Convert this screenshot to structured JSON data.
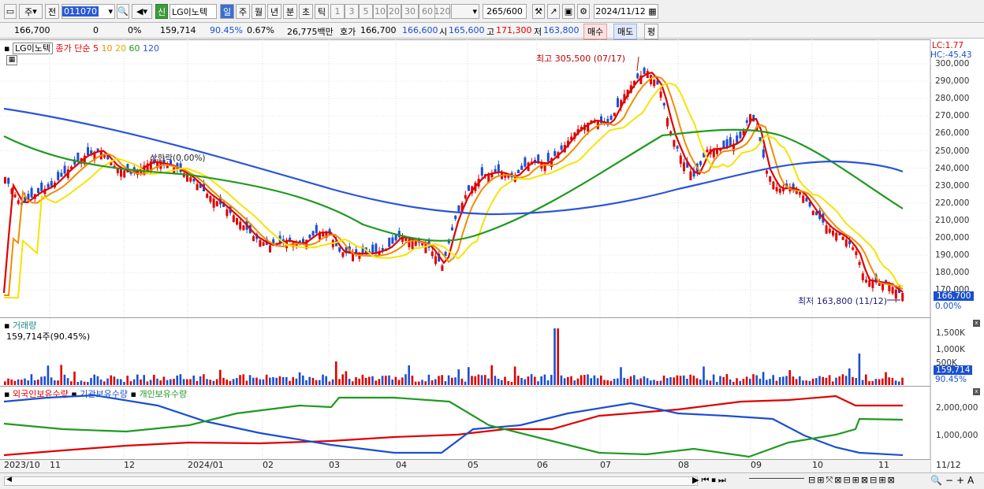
{
  "toolbar": {
    "market": "주",
    "prev": "전",
    "code": "011070",
    "name_badge": "신",
    "name": "LG이노텍",
    "periods": [
      "일",
      "주",
      "월",
      "년",
      "분",
      "초",
      "틱"
    ],
    "nums": [
      "1",
      "3",
      "5",
      "10",
      "20",
      "30",
      "60",
      "120"
    ],
    "count": "265",
    "count_total": "/600",
    "date": "2024/11/12"
  },
  "info": {
    "price": "166,700",
    "change": "0",
    "change_pct": "0%",
    "volume": "159,714",
    "vol_ratio": "90.45%",
    "turnover": "0.67%",
    "amount": "26,775백만",
    "hoga_label": "호가",
    "hoga1": "166,700",
    "hoga2": "166,600",
    "open_label": "시",
    "open": "165,600",
    "high_label": "고",
    "high": "171,300",
    "low_label": "저",
    "low": "163,800",
    "buy": "매수",
    "sell": "매도",
    "eval": "평"
  },
  "price_panel": {
    "title": "LG이노텍",
    "legend": "종가 단순",
    "ma": [
      "5",
      "10",
      "20",
      "60",
      "120"
    ],
    "lc": "LC:1.77",
    "hc": "HC:-45.43",
    "high_note": "최고 305,500 (07/17)",
    "low_note": "최저 163,800 (11/12)",
    "event": "상한락(0.00%)",
    "current": "166,700",
    "pct": "0.00%",
    "axis": [
      "300,000",
      "290,000",
      "280,000",
      "270,000",
      "260,000",
      "250,000",
      "240,000",
      "230,000",
      "220,000",
      "210,000",
      "200,000",
      "190,000",
      "180,000",
      "170,000"
    ]
  },
  "volume_panel": {
    "title": "거래량",
    "value": "159,714주(90.45%)",
    "axis": [
      "1,500K",
      "1,000K",
      "500K"
    ],
    "current": "159,714",
    "pct": "90.45%"
  },
  "holding_panel": {
    "labels": [
      "외국인보유수량",
      "기관보유수량",
      "개인보유수량"
    ],
    "axis": [
      "2,000,000",
      "1,000,000"
    ]
  },
  "x_labels": [
    "2023/10",
    "11",
    "12",
    "2024/01",
    "02",
    "03",
    "04",
    "05",
    "06",
    "07",
    "08",
    "09",
    "10",
    "11",
    "11/12"
  ],
  "colors": {
    "ma5": "#e00000",
    "ma10": "#f08c00",
    "ma20": "#f5e400",
    "ma60": "#1f9a1f",
    "ma120": "#2c54d8",
    "up": "#e00000",
    "down": "#1a4fd0"
  },
  "chart_data": {
    "type": "candlestick",
    "title": "LG이노텍",
    "y_range": [
      163800,
      305500
    ],
    "high": {
      "value": 305500,
      "date": "07/17"
    },
    "low": {
      "value": 163800,
      "date": "11/12"
    },
    "moving_averages": [
      "5",
      "10",
      "20",
      "60",
      "120"
    ]
  }
}
